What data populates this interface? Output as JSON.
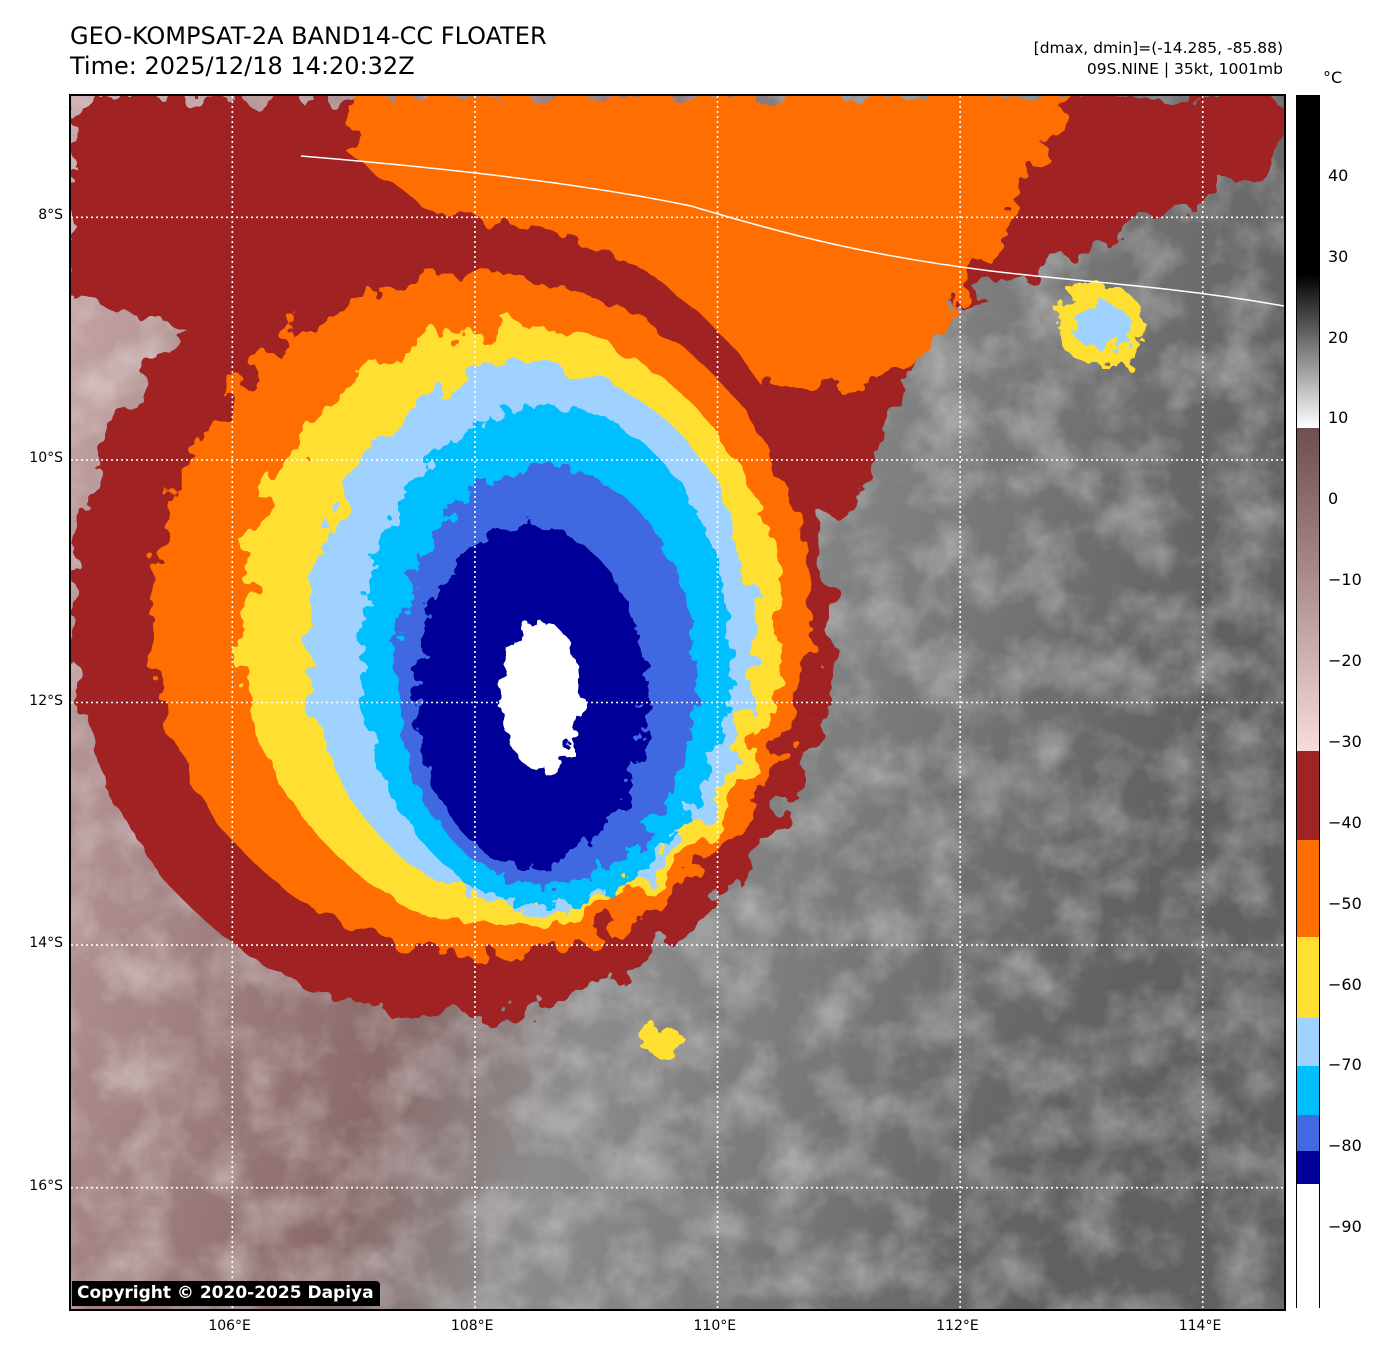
{
  "header": {
    "title": "GEO-KOMPSAT-2A BAND14-CC FLOATER",
    "time": "Time: 2025/12/18 14:20:32Z",
    "stats": "[dmax, dmin]=(-14.285, -85.88)",
    "storm": "09S.NINE | 35kt, 1001mb"
  },
  "map": {
    "lat_range": [
      -17,
      -7
    ],
    "lon_range": [
      104.67,
      114.67
    ],
    "lat_ticks": [
      {
        "value": -8,
        "label": "8°S"
      },
      {
        "value": -10,
        "label": "10°S"
      },
      {
        "value": -12,
        "label": "12°S"
      },
      {
        "value": -14,
        "label": "14°S"
      },
      {
        "value": -16,
        "label": "16°S"
      }
    ],
    "lon_ticks": [
      {
        "value": 106,
        "label": "106°E"
      },
      {
        "value": 108,
        "label": "108°E"
      },
      {
        "value": 110,
        "label": "110°E"
      },
      {
        "value": 112,
        "label": "112°E"
      },
      {
        "value": 114,
        "label": "114°E"
      }
    ],
    "copyright": "Copyright © 2020-2025 Dapiya"
  },
  "colorbar": {
    "unit": "°C",
    "range": [
      -100,
      50
    ],
    "ticks": [
      {
        "value": 40,
        "label": "40"
      },
      {
        "value": 30,
        "label": "30"
      },
      {
        "value": 20,
        "label": "20"
      },
      {
        "value": 10,
        "label": "10"
      },
      {
        "value": 0,
        "label": "0"
      },
      {
        "value": -10,
        "label": "−10"
      },
      {
        "value": -20,
        "label": "−20"
      },
      {
        "value": -30,
        "label": "−30"
      },
      {
        "value": -40,
        "label": "−40"
      },
      {
        "value": -50,
        "label": "−50"
      },
      {
        "value": -60,
        "label": "−60"
      },
      {
        "value": -70,
        "label": "−70"
      },
      {
        "value": -80,
        "label": "−80"
      },
      {
        "value": -90,
        "label": "−90"
      }
    ],
    "stops": [
      {
        "from": 28,
        "to": 50,
        "color": "#000000"
      },
      {
        "from": 9,
        "to": 28,
        "color": "gradient-gray"
      },
      {
        "from": -31,
        "to": 9,
        "color": "gradient-brown"
      },
      {
        "from": -42,
        "to": -31,
        "color": "#a02424"
      },
      {
        "from": -54,
        "to": -42,
        "color": "#ff6e00"
      },
      {
        "from": -64,
        "to": -54,
        "color": "#ffdf30"
      },
      {
        "from": -70,
        "to": -64,
        "color": "#a0d2ff"
      },
      {
        "from": -76,
        "to": -70,
        "color": "#00bfff"
      },
      {
        "from": -80.5,
        "to": -76,
        "color": "#4169e1"
      },
      {
        "from": -84.5,
        "to": -80.5,
        "color": "#000099"
      },
      {
        "from": -100,
        "to": -84.5,
        "color": "#ffffff"
      }
    ]
  }
}
